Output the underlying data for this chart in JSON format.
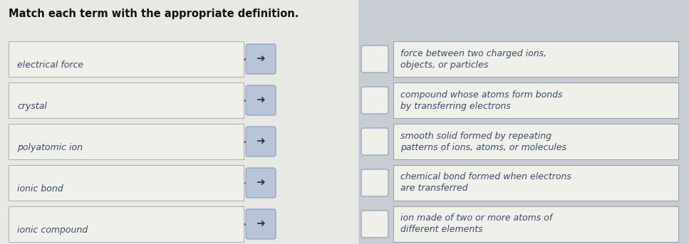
{
  "title": "Match each term with the appropriate definition.",
  "bg_left": "#e8e8e4",
  "bg_right": "#c8cdd4",
  "left_terms": [
    "electrical force",
    "crystal",
    "polyatomic ion",
    "ionic bond",
    "ionic compound"
  ],
  "right_definitions": [
    "force between two charged ions,\nobjects, or particles",
    "compound whose atoms form bonds\nby transferring electrons",
    "smooth solid formed by repeating\npatterns of ions, atoms, or molecules",
    "chemical bond formed when electrons\nare transferred",
    "ion made of two or more atoms of\ndifferent elements"
  ],
  "arrow_colors": [
    "#c0392b",
    "#2980b9",
    "#c0392b",
    "#7f8c8d",
    "#2980b9"
  ],
  "left_box_fill": "#f0f0eb",
  "left_box_edge": "#aaaaaa",
  "arrow_btn_fill": "#b8c4d8",
  "arrow_btn_edge": "#8899bb",
  "right_box_fill": "#f0f0eb",
  "right_box_edge": "#9999aa",
  "checkbox_fill": "#f0f0eb",
  "checkbox_edge": "#8899bb",
  "text_color": "#3a4a6b",
  "title_color": "#111111",
  "title_fontsize": 10.5,
  "term_fontsize": 9,
  "def_fontsize": 9
}
